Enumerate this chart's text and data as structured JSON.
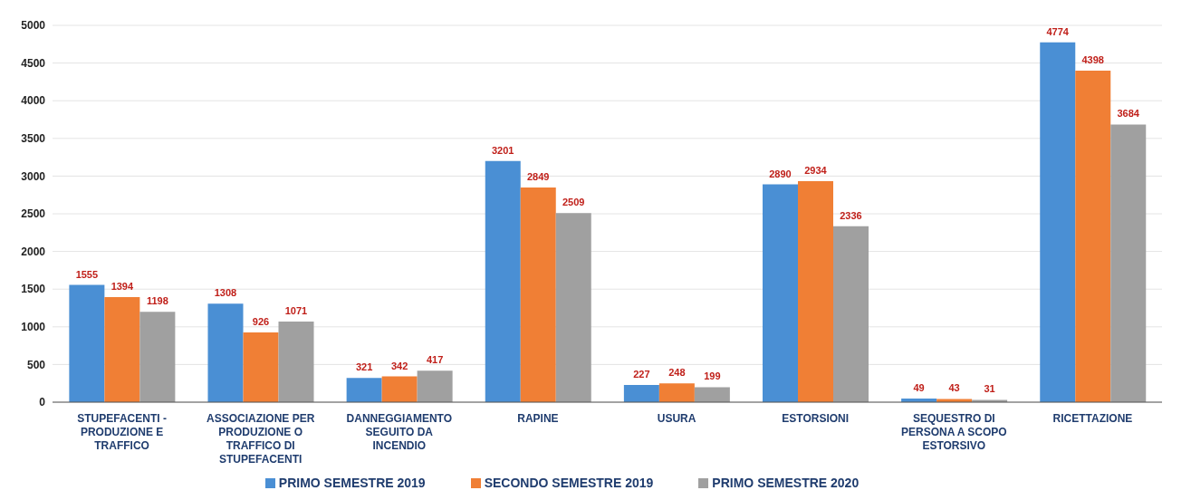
{
  "chart_data": {
    "type": "bar",
    "categories": [
      "STUPEFACENTI - PRODUZIONE E TRAFFICO",
      "ASSOCIAZIONE PER PRODUZIONE O TRAFFICO DI STUPEFACENTI",
      "DANNEGGIAMENTO SEGUITO DA INCENDIO",
      "RAPINE",
      "USURA",
      "ESTORSIONI",
      "SEQUESTRO DI PERSONA A SCOPO ESTORSIVO",
      "RICETTAZIONE"
    ],
    "series": [
      {
        "name": "PRIMO SEMESTRE 2019",
        "color": "#4a8fd4",
        "values": [
          1555,
          1308,
          321,
          3201,
          227,
          2890,
          49,
          4774
        ]
      },
      {
        "name": "SECONDO SEMESTRE 2019",
        "color": "#f07f35",
        "values": [
          1394,
          926,
          342,
          2849,
          248,
          2934,
          43,
          4398
        ]
      },
      {
        "name": "PRIMO SEMESTRE 2020",
        "color": "#a0a0a0",
        "values": [
          1198,
          1071,
          417,
          2509,
          199,
          2336,
          31,
          3684
        ]
      }
    ],
    "ylim": [
      0,
      5000
    ],
    "yticks": [
      0,
      500,
      1000,
      1500,
      2000,
      2500,
      3000,
      3500,
      4000,
      4500,
      5000
    ],
    "grid": "y",
    "legend": "bottom",
    "data_labels": true
  }
}
